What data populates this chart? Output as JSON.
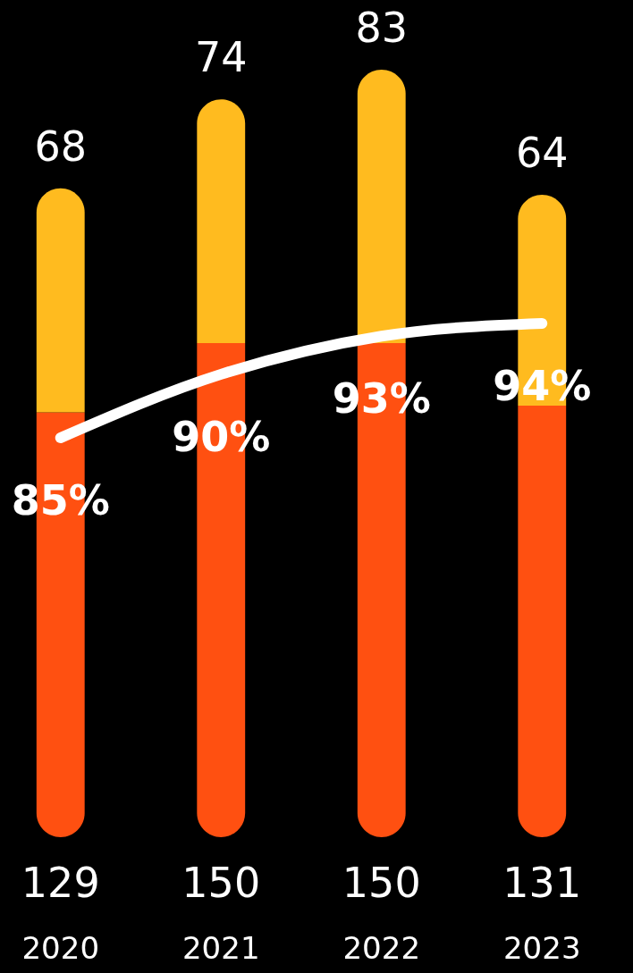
{
  "chart_data": {
    "type": "bar",
    "stacked": true,
    "categories": [
      "2020",
      "2021",
      "2022",
      "2023"
    ],
    "series": [
      {
        "color": "#ff5011",
        "values": [
          129,
          150,
          150,
          131
        ]
      },
      {
        "color": "#ffbb1f",
        "values": [
          68,
          74,
          83,
          64
        ]
      },
      {
        "type": "line",
        "axis": "y2",
        "color": "#ffffff",
        "values": [
          85,
          90,
          93,
          94
        ],
        "value_labels": [
          "85%",
          "90%",
          "93%",
          "94%"
        ]
      }
    ],
    "data_labels": true,
    "tick_labels": "x",
    "marker": "none",
    "line_style": "solid"
  }
}
